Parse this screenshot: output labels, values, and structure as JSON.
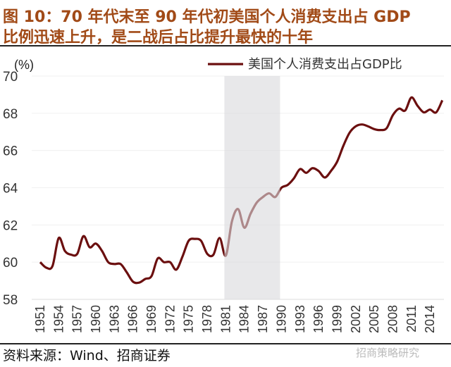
{
  "header": {
    "title_line1": "图 10：70 年代末至 90 年代初美国个人消费支出占 GDP",
    "title_line2": "比例迅速上升，是二战后占比提升最快的十年"
  },
  "footer": {
    "source": "资料来源：Wind、招商证券",
    "watermark": "招商策略研究"
  },
  "chart_data": {
    "type": "line",
    "title": "",
    "ylabel": "(%)",
    "xlabel": "",
    "ylim": [
      58,
      70
    ],
    "yticks": [
      "58",
      "60",
      "62",
      "64",
      "66",
      "68",
      "70"
    ],
    "xticks": [
      "1951",
      "1954",
      "1957",
      "1960",
      "1963",
      "1966",
      "1969",
      "1972",
      "1975",
      "1978",
      "1981",
      "1984",
      "1987",
      "1990",
      "1993",
      "1996",
      "1999",
      "2002",
      "2005",
      "2008",
      "2011",
      "2014"
    ],
    "grid": true,
    "legend_position": "top-right",
    "shaded_range": [
      1981,
      1990
    ],
    "shade_color": "#d9d9dc",
    "series": [
      {
        "name": "美国个人消费支出占GDP比",
        "color": "#6b0f0f",
        "x": [
          1951,
          1952,
          1953,
          1954,
          1955,
          1956,
          1957,
          1958,
          1959,
          1960,
          1961,
          1962,
          1963,
          1964,
          1965,
          1966,
          1967,
          1968,
          1969,
          1970,
          1971,
          1972,
          1973,
          1974,
          1975,
          1976,
          1977,
          1978,
          1979,
          1980,
          1981,
          1982,
          1983,
          1984,
          1985,
          1986,
          1987,
          1988,
          1989,
          1990,
          1991,
          1992,
          1993,
          1994,
          1995,
          1996,
          1997,
          1998,
          1999,
          2000,
          2001,
          2002,
          2003,
          2004,
          2005,
          2006,
          2007,
          2008,
          2009,
          2010,
          2011,
          2012,
          2013,
          2014,
          2015,
          2016
        ],
        "values": [
          60.0,
          59.7,
          59.8,
          61.3,
          60.6,
          60.4,
          60.45,
          61.4,
          60.8,
          61.0,
          60.6,
          60.0,
          59.9,
          59.9,
          59.45,
          58.95,
          58.9,
          59.1,
          59.25,
          60.2,
          60.0,
          60.0,
          59.6,
          60.3,
          61.15,
          61.25,
          61.15,
          60.45,
          60.4,
          61.3,
          60.35,
          62.2,
          62.85,
          61.85,
          62.6,
          63.2,
          63.5,
          63.7,
          63.5,
          64.0,
          64.15,
          64.5,
          65.0,
          64.8,
          65.05,
          64.9,
          64.55,
          64.9,
          65.4,
          66.25,
          66.95,
          67.3,
          67.4,
          67.3,
          67.15,
          67.1,
          67.2,
          67.9,
          68.25,
          68.15,
          68.85,
          68.4,
          68.05,
          68.2,
          68.05,
          68.7
        ]
      }
    ]
  }
}
